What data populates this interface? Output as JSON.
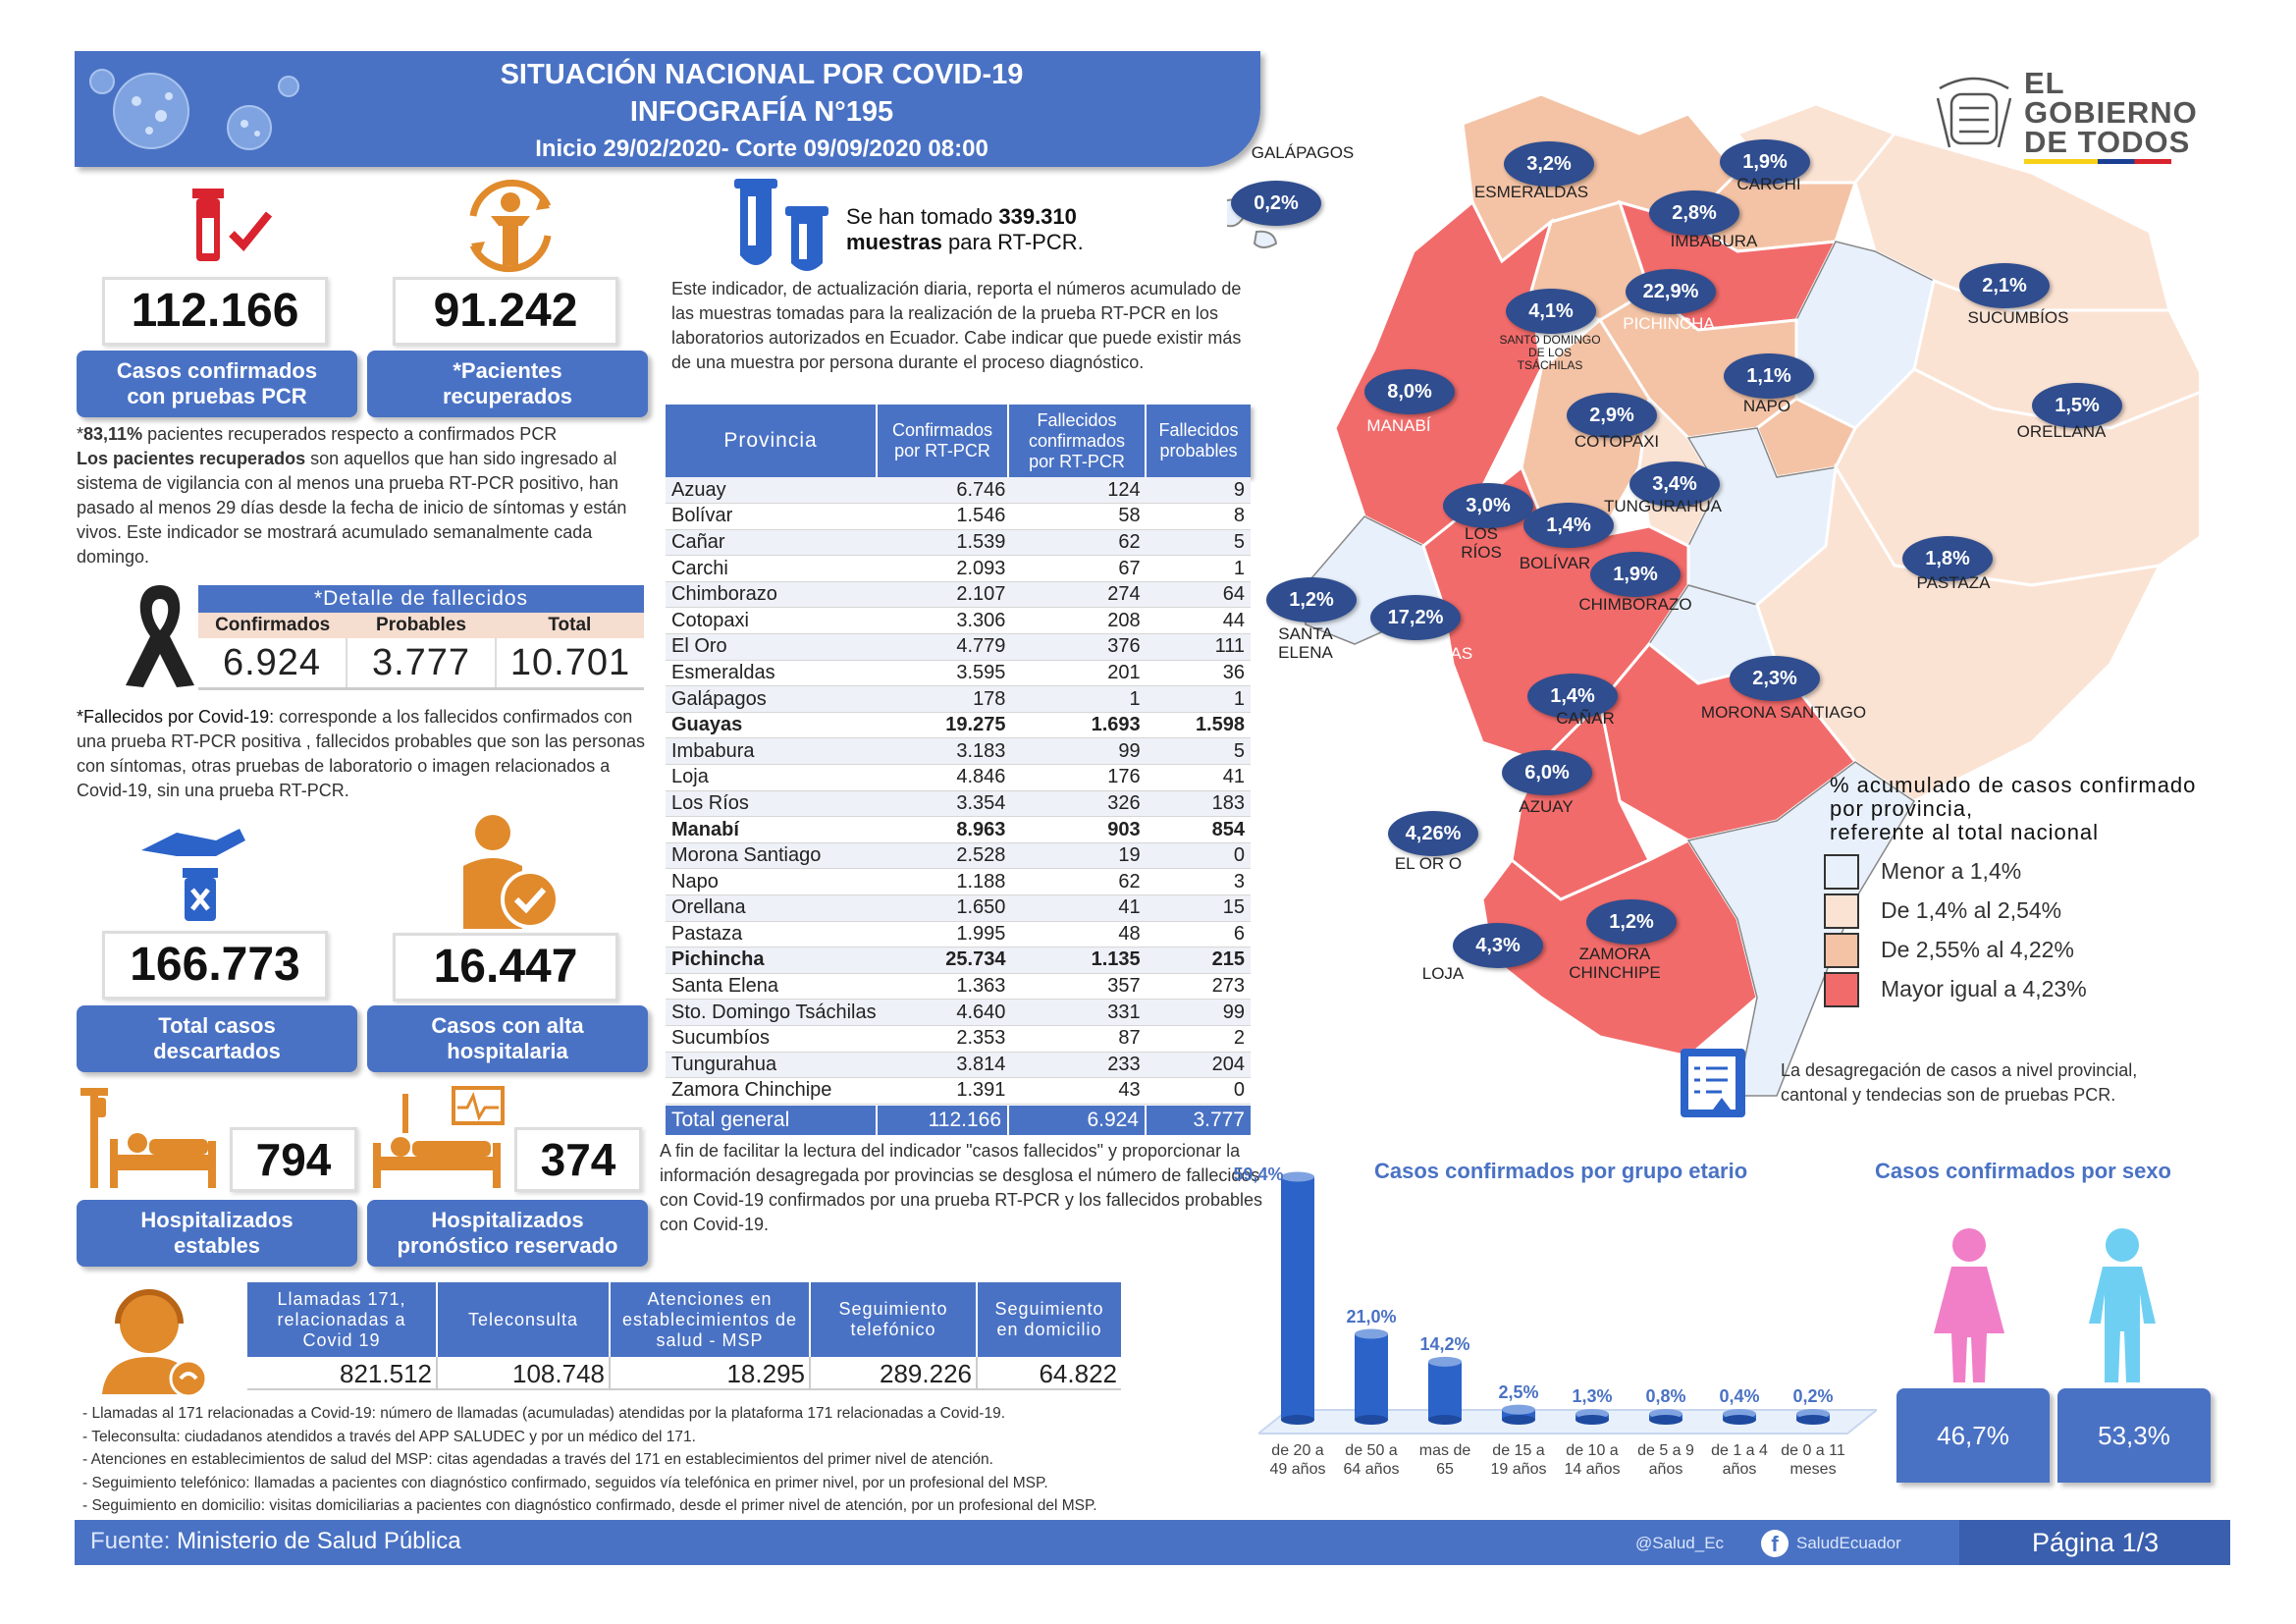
{
  "header": {
    "title": "SITUACIÓN NACIONAL POR  COVID-19",
    "subtitle": "INFOGRAFÍA N°195",
    "period": "Inicio 29/02/2020- Corte 09/09/2020 08:00"
  },
  "logo": {
    "line1": "EL",
    "line2": "GOBIERNO",
    "line3": "DE TODOS"
  },
  "kpis": {
    "confirmed": {
      "value": "112.166",
      "label": "Casos confirmados con pruebas PCR"
    },
    "recovered": {
      "value": "91.242",
      "label": "*Pacientes recuperados"
    },
    "discarded": {
      "value": "166.773",
      "label": "Total casos descartados"
    },
    "discharged": {
      "value": "16.447",
      "label": "Casos con alta hospitalaria"
    },
    "hosp_stable": {
      "value": "794",
      "label": "Hospitalizados estables"
    },
    "hosp_reserved": {
      "value": "374",
      "label": "Hospitalizados pronóstico reservado"
    }
  },
  "recovered_note": {
    "pct": "83,11%",
    "pct_text": "pacientes recuperados respecto a confirmados PCR",
    "bold": "Los pacientes recuperados",
    "text": "son aquellos que han sido ingresado al sistema de vigilancia con al menos una prueba RT-PCR positivo, han pasado al menos 29 días desde la fecha de inicio de síntomas y están vivos. Este indicador se mostrará acumulado semanalmente cada domingo."
  },
  "deaths": {
    "title": "*Detalle de fallecidos",
    "headers": [
      "Confirmados",
      "Probables",
      "Total"
    ],
    "values": [
      "6.924",
      "3.777",
      "10.701"
    ],
    "note_label": "*Fallecidos por Covid-19:",
    "note": "corresponde a los fallecidos confirmados con una prueba RT-PCR positiva , fallecidos probables que son las personas con síntomas, otras pruebas de laboratorio o imagen relacionados a Covid-19, sin una prueba RT-PCR."
  },
  "samples": {
    "prefix": "Se han tomado",
    "value": "339.310",
    "line2_bold": "muestras",
    "line2": "para RT-PCR.",
    "description": "Este indicador, de actualización diaria, reporta el números acumulado de las muestras tomadas para la realización de la prueba RT-PCR en los laboratorios autorizados en Ecuador. Cabe indicar que puede existir más de una muestra por persona durante el proceso diagnóstico."
  },
  "province_table": {
    "headers": [
      "Provincia",
      "Confirmados por RT-PCR",
      "Fallecidos confirmados por RT-PCR",
      "Fallecidos probables"
    ],
    "rows": [
      [
        "Azuay",
        "6.746",
        "124",
        "9"
      ],
      [
        "Bolívar",
        "1.546",
        "58",
        "8"
      ],
      [
        "Cañar",
        "1.539",
        "62",
        "5"
      ],
      [
        "Carchi",
        "2.093",
        "67",
        "1"
      ],
      [
        "Chimborazo",
        "2.107",
        "274",
        "64"
      ],
      [
        "Cotopaxi",
        "3.306",
        "208",
        "44"
      ],
      [
        "El Oro",
        "4.779",
        "376",
        "111"
      ],
      [
        "Esmeraldas",
        "3.595",
        "201",
        "36"
      ],
      [
        "Galápagos",
        "178",
        "1",
        "1"
      ],
      [
        "Guayas",
        "19.275",
        "1.693",
        "1.598"
      ],
      [
        "Imbabura",
        "3.183",
        "99",
        "5"
      ],
      [
        "Loja",
        "4.846",
        "176",
        "41"
      ],
      [
        "Los Ríos",
        "3.354",
        "326",
        "183"
      ],
      [
        "Manabí",
        "8.963",
        "903",
        "854"
      ],
      [
        "Morona Santiago",
        "2.528",
        "19",
        "0"
      ],
      [
        "Napo",
        "1.188",
        "62",
        "3"
      ],
      [
        "Orellana",
        "1.650",
        "41",
        "15"
      ],
      [
        "Pastaza",
        "1.995",
        "48",
        "6"
      ],
      [
        "Pichincha",
        "25.734",
        "1.135",
        "215"
      ],
      [
        "Santa Elena",
        "1.363",
        "357",
        "273"
      ],
      [
        "Sto. Domingo Tsáchilas",
        "4.640",
        "331",
        "99"
      ],
      [
        "Sucumbíos",
        "2.353",
        "87",
        "2"
      ],
      [
        "Tungurahua",
        "3.814",
        "233",
        "204"
      ],
      [
        "Zamora Chinchipe",
        "1.391",
        "43",
        "0"
      ]
    ],
    "total": [
      "Total general",
      "112.166",
      "6.924",
      "3.777"
    ],
    "note": "A fin de facilitar la lectura del indicador \"casos fallecidos\" y proporcionar la información desagregada por provincias se desglosa el número de fallecidos con Covid-19 confirmados por una prueba RT-PCR y los fallecidos probables con Covid-19."
  },
  "map": {
    "regions": [
      {
        "name": "GALÁPAGOS",
        "pct": "0,2%"
      },
      {
        "name": "ESMERALDAS",
        "pct": "3,2%"
      },
      {
        "name": "CARCHI",
        "pct": "1,9%"
      },
      {
        "name": "IMBABURA",
        "pct": "2,8%"
      },
      {
        "name": "SANTO DOMINGO DE LOS TSÁCHILAS",
        "pct": "4,1%"
      },
      {
        "name": "PICHINCHA",
        "pct": "22,9%"
      },
      {
        "name": "SUCUMBÍOS",
        "pct": "2,1%"
      },
      {
        "name": "MANABÍ",
        "pct": "8,0%"
      },
      {
        "name": "NAPO",
        "pct": "1,1%"
      },
      {
        "name": "ORELLANA",
        "pct": "1,5%"
      },
      {
        "name": "COTOPAXI",
        "pct": "2,9%"
      },
      {
        "name": "TUNGURAHUA",
        "pct": "3,4%"
      },
      {
        "name": "LOS RÍOS",
        "pct": "3,0%"
      },
      {
        "name": "BOLÍVAR",
        "pct": "1,4%"
      },
      {
        "name": "CHIMBORAZO",
        "pct": "1,9%"
      },
      {
        "name": "PASTAZA",
        "pct": "1,8%"
      },
      {
        "name": "SANTA ELENA",
        "pct": "1,2%"
      },
      {
        "name": "GUAYAS",
        "pct": "17,2%"
      },
      {
        "name": "CAÑAR",
        "pct": "1,4%"
      },
      {
        "name": "MORONA SANTIAGO",
        "pct": "2,3%"
      },
      {
        "name": "AZUAY",
        "pct": "6,0%"
      },
      {
        "name": "EL OR O",
        "pct": "4,26%"
      },
      {
        "name": "ZAMORA CHINCHIPE",
        "pct": "1,2%"
      },
      {
        "name": "LOJA",
        "pct": "4,3%"
      }
    ],
    "legend_title_1": "% acumulado de casos confirmado",
    "legend_title_2": "por provincia,",
    "legend_title_3": "referente al total nacional",
    "legend": [
      {
        "label": "Menor a 1,4%",
        "color": "#e8f0fb"
      },
      {
        "label": "De 1,4% al 2,54%",
        "color": "#fbe3d4"
      },
      {
        "label": "De 2,55% al 4,22%",
        "color": "#f4c3a6"
      },
      {
        "label": "Mayor igual a 4,23%",
        "color": "#f26b6b"
      }
    ],
    "note": "La desagregación de casos a nivel provincial, cantonal y tendecias son  de pruebas PCR."
  },
  "age_chart": {
    "title": "Casos confirmados por grupo etario",
    "chart_data": {
      "type": "bar",
      "categories": [
        "de 20 a 49 años",
        "de 50 a 64 años",
        "mas de 65",
        "de 15 a 19 años",
        "de 10 a 14 años",
        "de 5 a 9 años",
        "de 1 a 4 años",
        "de 0 a 11 meses"
      ],
      "values": [
        59.4,
        21.0,
        14.2,
        2.5,
        1.3,
        0.8,
        0.4,
        0.2
      ],
      "labels": [
        "59,4%",
        "21,0%",
        "14,2%",
        "2,5%",
        "1,3%",
        "0,8%",
        "0,4%",
        "0,2%"
      ],
      "title": "Casos confirmados por grupo etario"
    }
  },
  "sex_chart": {
    "title": "Casos confirmados por sexo",
    "female": "46,7%",
    "male": "53,3%",
    "female_color": "#f07fc8",
    "male_color": "#6fcff2"
  },
  "calls": {
    "headers": [
      "Llamadas 171, relacionadas a Covid 19",
      "Teleconsulta",
      "Atenciones en establecimientos de salud - MSP",
      "Seguimiento telefónico",
      "Seguimiento en domicilio"
    ],
    "values": [
      "821.512",
      "108.748",
      "18.295",
      "289.226",
      "64.822"
    ],
    "notes": [
      "- Llamadas al 171 relacionadas a Covid-19: número de llamadas (acumuladas) atendidas por la plataforma 171 relacionadas a Covid-19.",
      "- Teleconsulta: ciudadanos atendidos a través del APP SALUDEC y por un médico del 171.",
      "- Atenciones en establecimientos de salud del MSP:  citas agendadas a través del 171 en establecimientos del primer nivel de atención.",
      "- Seguimiento telefónico: llamadas a pacientes con diagnóstico confirmado, seguidos vía telefónica en primer nivel, por un profesional del MSP.",
      "- Seguimiento en domicilio: visitas domiciliarias a pacientes con diagnóstico confirmado, desde el primer nivel de atención, por un profesional del MSP."
    ]
  },
  "footer": {
    "source_label": "Fuente:",
    "source": "Ministerio de Salud Pública",
    "twitter": "@Salud_Ec",
    "facebook": "SaludEcuador",
    "page": "Página 1/3"
  },
  "colors": {
    "primary_blue": "#4a72c4",
    "dark_blue": "#2f4d8f",
    "red": "#d9232e",
    "orange": "#e08a2c"
  }
}
